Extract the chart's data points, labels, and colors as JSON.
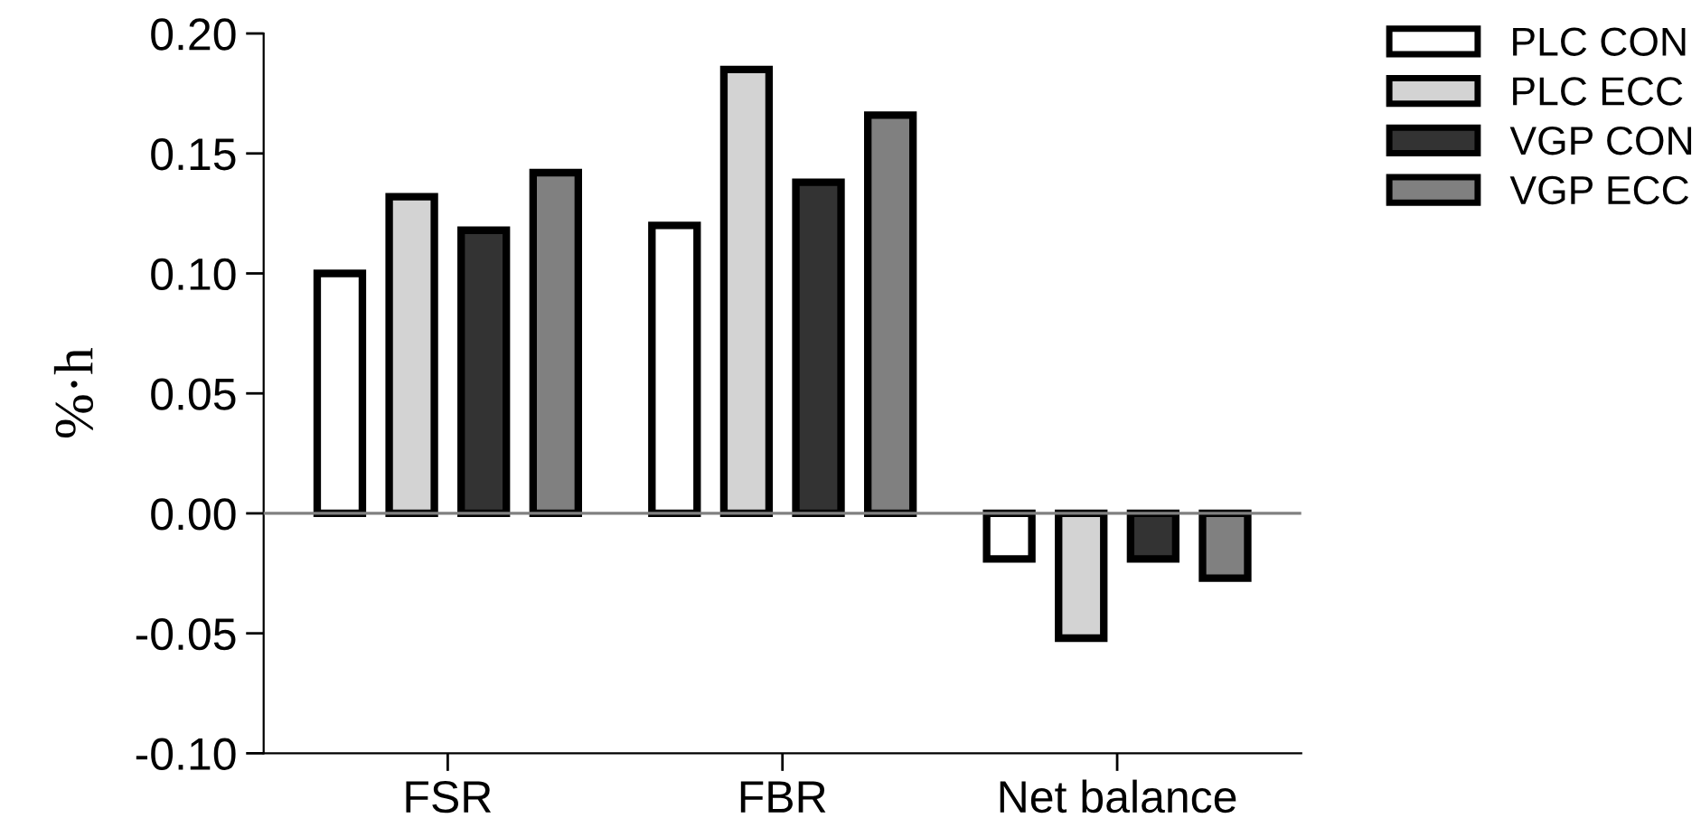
{
  "chart_data": {
    "type": "bar",
    "ylabel": "%·h",
    "categories": [
      "FSR",
      "FBR",
      "Net balance"
    ],
    "series": [
      {
        "name": "PLC CON",
        "color": "#ffffff",
        "values": [
          0.1,
          0.12,
          -0.019
        ]
      },
      {
        "name": "PLC ECC",
        "color": "#d3d3d3",
        "values": [
          0.132,
          0.185,
          -0.052
        ]
      },
      {
        "name": "VGP CON",
        "color": "#333333",
        "values": [
          0.118,
          0.138,
          -0.019
        ]
      },
      {
        "name": "VGP ECC",
        "color": "#808080",
        "values": [
          0.142,
          0.166,
          -0.027
        ]
      }
    ],
    "ylim": [
      -0.1,
      0.2
    ],
    "yticks": [
      {
        "value": -0.1,
        "label": "-0.10"
      },
      {
        "value": -0.05,
        "label": "-0.05"
      },
      {
        "value": 0,
        "label": "0.00"
      },
      {
        "value": 0.05,
        "label": "0.05"
      },
      {
        "value": 0.1,
        "label": "0.10"
      },
      {
        "value": 0.15,
        "label": "0.15"
      },
      {
        "value": 0.2,
        "label": "0.20"
      }
    ],
    "ref_lines": [
      {
        "axis": "y",
        "value": 0,
        "color": "#808080"
      }
    ],
    "grid": false,
    "legend": "top right"
  }
}
